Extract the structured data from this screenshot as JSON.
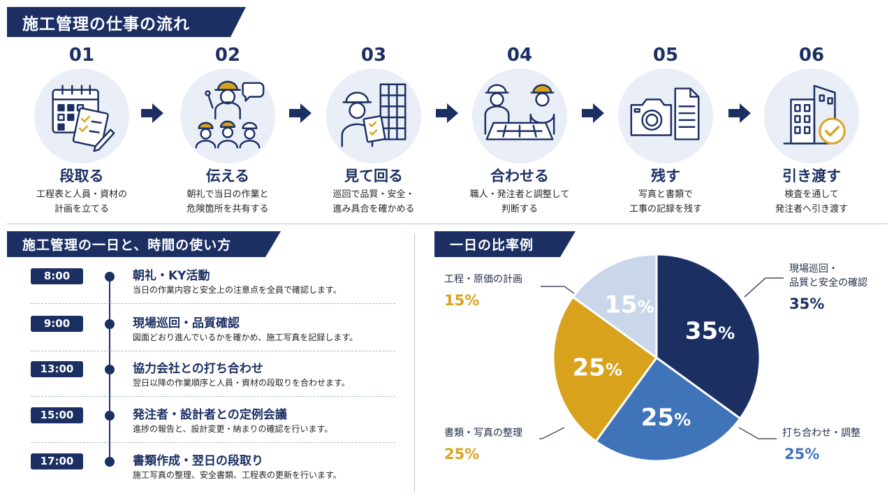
{
  "header": {
    "title": "施工管理の仕事の流れ"
  },
  "steps": [
    {
      "num": "01",
      "title": "段取る",
      "desc": "工程表と人員・資材の\n計画を立てる",
      "icon": "calendar-checklist-icon"
    },
    {
      "num": "02",
      "title": "伝える",
      "desc": "朝礼で当日の作業と\n危険箇所を共有する",
      "icon": "briefing-workers-icon"
    },
    {
      "num": "03",
      "title": "見て回る",
      "desc": "巡回で品質・安全・\n進み具合を確かめる",
      "icon": "inspector-clipboard-icon"
    },
    {
      "num": "04",
      "title": "合わせる",
      "desc": "職人・発注者と調整して\n判断する",
      "icon": "meeting-blueprint-icon"
    },
    {
      "num": "05",
      "title": "残す",
      "desc": "写真と書類で\n工事の記録を残す",
      "icon": "camera-document-icon"
    },
    {
      "num": "06",
      "title": "引き渡す",
      "desc": "検査を通して\n発注者へ引き渡す",
      "icon": "building-check-icon"
    }
  ],
  "day": {
    "title": "施工管理の一日と、時間の使い方",
    "items": [
      {
        "time": "8:00",
        "title": "朝礼・KY活動",
        "desc": "当日の作業内容と安全上の注意点を全員で確認します。"
      },
      {
        "time": "9:00",
        "title": "現場巡回・品質確認",
        "desc": "図面どおり進んでいるかを確かめ、施工写真を記録します。"
      },
      {
        "time": "13:00",
        "title": "協力会社との打ち合わせ",
        "desc": "翌日以降の作業順序と人員・資材の段取りを合わせます。"
      },
      {
        "time": "15:00",
        "title": "発注者・設計者との定例会議",
        "desc": "進捗の報告と、設計変更・納まりの確認を行います。"
      },
      {
        "time": "17:00",
        "title": "書類作成・翌日の段取り",
        "desc": "施工写真の整理、安全書類、工程表の更新を行います。"
      }
    ]
  },
  "pie_section": {
    "title": "一日の比率例"
  },
  "chart_data": {
    "type": "pie",
    "title": "一日の比率例",
    "unit": "%",
    "slices": [
      {
        "label": "現場巡回・\n品質と安全の確認",
        "value": 35,
        "color": "#1b2f63",
        "text_color": "#ffffff",
        "label_color": "#1b2f63"
      },
      {
        "label": "打ち合わせ・調整",
        "value": 25,
        "color": "#3f74b8",
        "text_color": "#ffffff",
        "label_color": "#3f74b8"
      },
      {
        "label": "書類・写真の整理",
        "value": 25,
        "color": "#d8a21c",
        "text_color": "#ffffff",
        "label_color": "#d8a21c"
      },
      {
        "label": "工程・原価の計画",
        "value": 15,
        "color": "#cad7ea",
        "text_color": "#ffffff",
        "label_color": "#d8a21c"
      }
    ]
  },
  "colors": {
    "navy": "#1b2f63",
    "blue": "#3f74b8",
    "gold": "#d8a21c",
    "light": "#cad7ea"
  }
}
